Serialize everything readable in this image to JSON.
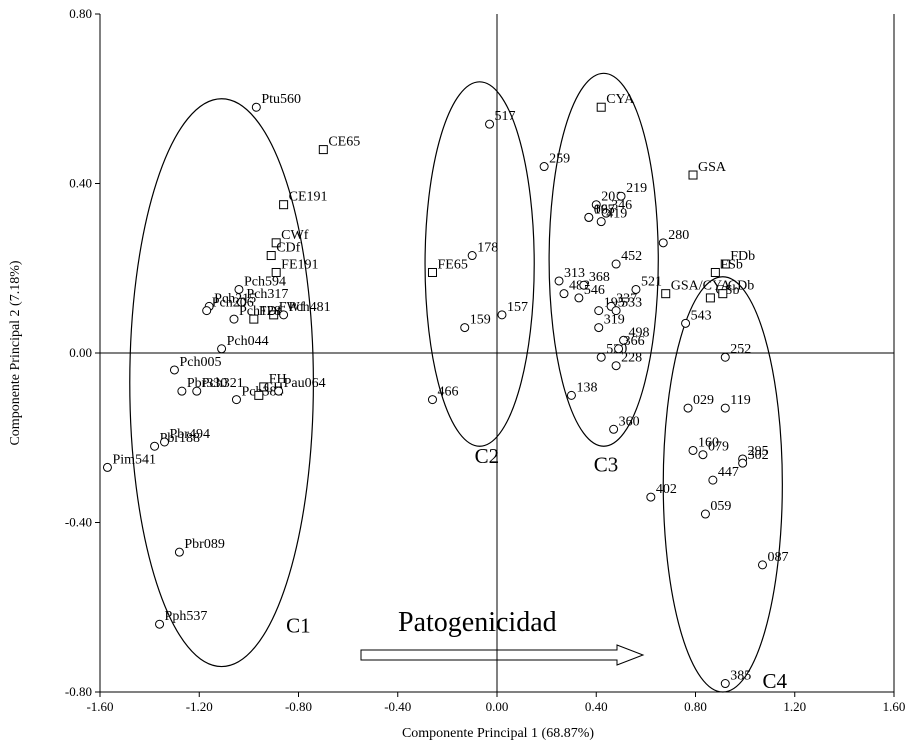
{
  "chart_data": {
    "type": "scatter",
    "xlabel": "Componente Principal 1 (68.87%)",
    "ylabel": "Componente Principal 2 (7.18%)",
    "xlim": [
      -1.6,
      1.6
    ],
    "ylim": [
      -0.8,
      0.8
    ],
    "x_ticks": [
      "-1.60",
      "-1.20",
      "-0.80",
      "-0.40",
      "0.00",
      "0.40",
      "0.80",
      "1.20",
      "1.60"
    ],
    "y_ticks": [
      "0.80",
      "0.40",
      "0.00",
      "-0.40",
      "-0.80"
    ],
    "reference_lines": {
      "x": 0,
      "y": 0
    },
    "arrow_text": "Patogenicidad",
    "clusters": [
      {
        "label": "C1",
        "center": [
          -1.11,
          -0.07
        ],
        "radii": [
          0.37,
          0.67
        ],
        "label_pos": [
          -0.85,
          -0.66
        ]
      },
      {
        "label": "C2",
        "center": [
          -0.07,
          0.21
        ],
        "radii": [
          0.22,
          0.43
        ],
        "label_pos": [
          -0.09,
          -0.26
        ]
      },
      {
        "label": "C3",
        "center": [
          0.43,
          0.22
        ],
        "radii": [
          0.22,
          0.44
        ],
        "label_pos": [
          0.39,
          -0.28
        ]
      },
      {
        "label": "C4",
        "center": [
          0.91,
          -0.31
        ],
        "radii": [
          0.24,
          0.49
        ],
        "label_pos": [
          1.07,
          -0.79
        ]
      }
    ],
    "points": [
      {
        "label": "Ptu560",
        "x": -0.97,
        "y": 0.58,
        "marker": "circle"
      },
      {
        "label": "CE65",
        "x": -0.7,
        "y": 0.48,
        "marker": "square"
      },
      {
        "label": "CE191",
        "x": -0.86,
        "y": 0.35,
        "marker": "square"
      },
      {
        "label": "CWf",
        "x": -0.89,
        "y": 0.26,
        "marker": "square"
      },
      {
        "label": "CDf",
        "x": -0.91,
        "y": 0.23,
        "marker": "square"
      },
      {
        "label": "FE191",
        "x": -0.89,
        "y": 0.19,
        "marker": "square"
      },
      {
        "label": "Pch594",
        "x": -1.04,
        "y": 0.15,
        "marker": "circle"
      },
      {
        "label": "Pch215",
        "x": -1.16,
        "y": 0.11,
        "marker": "circle"
      },
      {
        "label": "Pch317",
        "x": -1.03,
        "y": 0.12,
        "marker": "circle"
      },
      {
        "label": "Pch206",
        "x": -1.17,
        "y": 0.1,
        "marker": "circle"
      },
      {
        "label": "Pch481",
        "x": -0.86,
        "y": 0.09,
        "marker": "circle"
      },
      {
        "label": "FWf",
        "x": -0.9,
        "y": 0.09,
        "marker": "square"
      },
      {
        "label": "Pch128",
        "x": -1.06,
        "y": 0.08,
        "marker": "circle"
      },
      {
        "label": "FDf",
        "x": -0.98,
        "y": 0.08,
        "marker": "square"
      },
      {
        "label": "Pch044",
        "x": -1.11,
        "y": 0.01,
        "marker": "circle"
      },
      {
        "label": "Pch005",
        "x": -1.3,
        "y": -0.04,
        "marker": "circle"
      },
      {
        "label": "Pbr330",
        "x": -1.27,
        "y": -0.09,
        "marker": "circle"
      },
      {
        "label": "Pch321",
        "x": -1.21,
        "y": -0.09,
        "marker": "circle"
      },
      {
        "label": "FH",
        "x": -0.94,
        "y": -0.08,
        "marker": "square"
      },
      {
        "label": "Pch384",
        "x": -1.05,
        "y": -0.11,
        "marker": "circle"
      },
      {
        "label": "CH",
        "x": -0.96,
        "y": -0.1,
        "marker": "square"
      },
      {
        "label": "Pau064",
        "x": -0.88,
        "y": -0.09,
        "marker": "circle"
      },
      {
        "label": "Pbr188",
        "x": -1.38,
        "y": -0.22,
        "marker": "circle"
      },
      {
        "label": "Pbr494",
        "x": -1.34,
        "y": -0.21,
        "marker": "circle"
      },
      {
        "label": "Pim541",
        "x": -1.57,
        "y": -0.27,
        "marker": "circle"
      },
      {
        "label": "Pbr089",
        "x": -1.28,
        "y": -0.47,
        "marker": "circle"
      },
      {
        "label": "Pph537",
        "x": -1.36,
        "y": -0.64,
        "marker": "circle"
      },
      {
        "label": "517",
        "x": -0.03,
        "y": 0.54,
        "marker": "circle"
      },
      {
        "label": "178",
        "x": -0.1,
        "y": 0.23,
        "marker": "circle"
      },
      {
        "label": "FE65",
        "x": -0.26,
        "y": 0.19,
        "marker": "square"
      },
      {
        "label": "157",
        "x": 0.02,
        "y": 0.09,
        "marker": "circle"
      },
      {
        "label": "159",
        "x": -0.13,
        "y": 0.06,
        "marker": "circle"
      },
      {
        "label": "466",
        "x": -0.26,
        "y": -0.11,
        "marker": "circle"
      },
      {
        "label": "CYA",
        "x": 0.42,
        "y": 0.58,
        "marker": "square"
      },
      {
        "label": "259",
        "x": 0.19,
        "y": 0.44,
        "marker": "circle"
      },
      {
        "label": "GSA",
        "x": 0.79,
        "y": 0.42,
        "marker": "square"
      },
      {
        "label": "201",
        "x": 0.4,
        "y": 0.35,
        "marker": "circle"
      },
      {
        "label": "219",
        "x": 0.5,
        "y": 0.37,
        "marker": "circle"
      },
      {
        "label": "097",
        "x": 0.37,
        "y": 0.32,
        "marker": "circle"
      },
      {
        "label": "346",
        "x": 0.44,
        "y": 0.33,
        "marker": "circle"
      },
      {
        "label": "165",
        "x": 0.37,
        "y": 0.32,
        "marker": "circle"
      },
      {
        "label": "419",
        "x": 0.42,
        "y": 0.31,
        "marker": "circle"
      },
      {
        "label": "280",
        "x": 0.67,
        "y": 0.26,
        "marker": "circle"
      },
      {
        "label": "FDb",
        "x": 0.92,
        "y": 0.21,
        "marker": "square"
      },
      {
        "label": "452",
        "x": 0.48,
        "y": 0.21,
        "marker": "circle"
      },
      {
        "label": "FSb",
        "x": 0.88,
        "y": 0.19,
        "marker": "square"
      },
      {
        "label": "313",
        "x": 0.25,
        "y": 0.17,
        "marker": "circle"
      },
      {
        "label": "482",
        "x": 0.27,
        "y": 0.14,
        "marker": "circle"
      },
      {
        "label": "368",
        "x": 0.35,
        "y": 0.16,
        "marker": "circle"
      },
      {
        "label": "546",
        "x": 0.33,
        "y": 0.13,
        "marker": "circle"
      },
      {
        "label": "521",
        "x": 0.56,
        "y": 0.15,
        "marker": "circle"
      },
      {
        "label": "GSA/CYA",
        "x": 0.68,
        "y": 0.14,
        "marker": "square"
      },
      {
        "label": "CSb",
        "x": 0.86,
        "y": 0.13,
        "marker": "square"
      },
      {
        "label": "195",
        "x": 0.41,
        "y": 0.1,
        "marker": "circle"
      },
      {
        "label": "337",
        "x": 0.46,
        "y": 0.11,
        "marker": "circle"
      },
      {
        "label": "533",
        "x": 0.48,
        "y": 0.1,
        "marker": "circle"
      },
      {
        "label": "CDb",
        "x": 0.91,
        "y": 0.14,
        "marker": "square"
      },
      {
        "label": "543",
        "x": 0.76,
        "y": 0.07,
        "marker": "circle"
      },
      {
        "label": "319",
        "x": 0.41,
        "y": 0.06,
        "marker": "circle"
      },
      {
        "label": "498",
        "x": 0.51,
        "y": 0.03,
        "marker": "circle"
      },
      {
        "label": "252",
        "x": 0.92,
        "y": -0.01,
        "marker": "circle"
      },
      {
        "label": "530",
        "x": 0.42,
        "y": -0.01,
        "marker": "circle"
      },
      {
        "label": "366",
        "x": 0.49,
        "y": 0.01,
        "marker": "circle"
      },
      {
        "label": "228",
        "x": 0.48,
        "y": -0.03,
        "marker": "circle"
      },
      {
        "label": "138",
        "x": 0.3,
        "y": -0.1,
        "marker": "circle"
      },
      {
        "label": "029",
        "x": 0.77,
        "y": -0.13,
        "marker": "circle"
      },
      {
        "label": "119",
        "x": 0.92,
        "y": -0.13,
        "marker": "circle"
      },
      {
        "label": "360",
        "x": 0.47,
        "y": -0.18,
        "marker": "circle"
      },
      {
        "label": "160",
        "x": 0.79,
        "y": -0.23,
        "marker": "circle"
      },
      {
        "label": "079",
        "x": 0.83,
        "y": -0.24,
        "marker": "circle"
      },
      {
        "label": "295",
        "x": 0.99,
        "y": -0.25,
        "marker": "circle"
      },
      {
        "label": "302",
        "x": 0.99,
        "y": -0.26,
        "marker": "circle"
      },
      {
        "label": "447",
        "x": 0.87,
        "y": -0.3,
        "marker": "circle"
      },
      {
        "label": "402",
        "x": 0.62,
        "y": -0.34,
        "marker": "circle"
      },
      {
        "label": "059",
        "x": 0.84,
        "y": -0.38,
        "marker": "circle"
      },
      {
        "label": "087",
        "x": 1.07,
        "y": -0.5,
        "marker": "circle"
      },
      {
        "label": "385",
        "x": 0.92,
        "y": -0.78,
        "marker": "circle"
      }
    ]
  }
}
